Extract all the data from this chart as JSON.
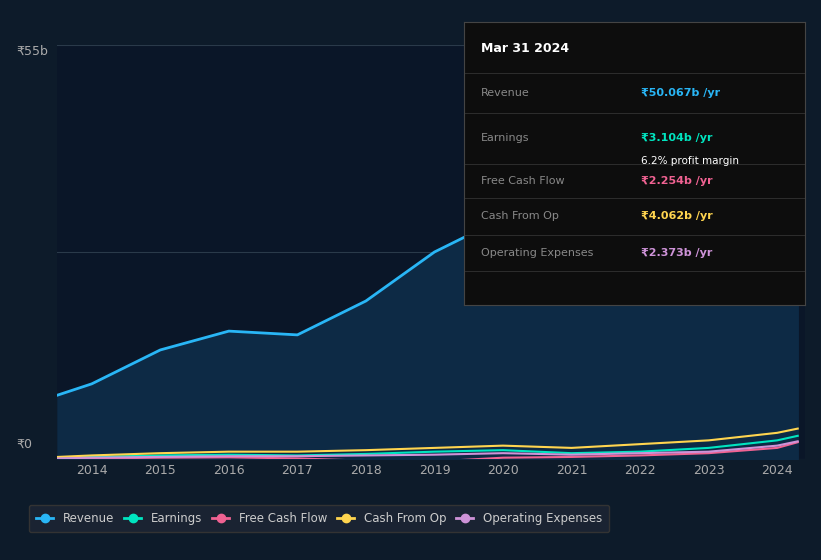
{
  "background_color": "#0d1b2a",
  "chart_area_color": "#0a1628",
  "y_label_55b": "₹55b",
  "y_label_0": "₹0",
  "years": [
    2013.5,
    2014,
    2015,
    2016,
    2017,
    2018,
    2019,
    2020,
    2021,
    2022,
    2023,
    2024,
    2024.3
  ],
  "revenue": [
    8.5,
    10.0,
    14.5,
    17.0,
    16.5,
    21.0,
    27.5,
    32.0,
    22.0,
    26.0,
    33.0,
    45.0,
    50.067
  ],
  "earnings": [
    0.2,
    0.3,
    0.5,
    0.6,
    0.5,
    0.7,
    1.0,
    1.2,
    0.8,
    1.0,
    1.5,
    2.5,
    3.104
  ],
  "free_cash_flow": [
    0.05,
    0.1,
    0.2,
    0.25,
    0.1,
    -0.2,
    -0.3,
    0.2,
    0.3,
    0.5,
    0.8,
    1.5,
    2.254
  ],
  "cash_from_op": [
    0.3,
    0.5,
    0.8,
    1.0,
    1.0,
    1.2,
    1.5,
    1.8,
    1.5,
    2.0,
    2.5,
    3.5,
    4.062
  ],
  "operating_expenses": [
    0.1,
    0.2,
    0.3,
    0.4,
    0.4,
    0.5,
    0.6,
    0.8,
    0.6,
    0.8,
    1.0,
    1.8,
    2.373
  ],
  "revenue_color": "#29b6f6",
  "earnings_color": "#00e5c0",
  "free_cash_flow_color": "#f06292",
  "cash_from_op_color": "#ffd54f",
  "operating_expenses_color": "#ce93d8",
  "revenue_fill_color": "#0d2a45",
  "ylim": [
    0,
    55
  ],
  "xlim_start": 2013.5,
  "xlim_end": 2024.4,
  "xticks": [
    2014,
    2015,
    2016,
    2017,
    2018,
    2019,
    2020,
    2021,
    2022,
    2023,
    2024
  ],
  "info_title": "Mar 31 2024",
  "info_revenue_label": "Revenue",
  "info_revenue_value": "₹50.067b /yr",
  "info_earnings_label": "Earnings",
  "info_earnings_value": "₹3.104b /yr",
  "info_margin_value": "6.2% profit margin",
  "info_fcf_label": "Free Cash Flow",
  "info_fcf_value": "₹2.254b /yr",
  "info_cfop_label": "Cash From Op",
  "info_cfop_value": "₹4.062b /yr",
  "info_opex_label": "Operating Expenses",
  "info_opex_value": "₹2.373b /yr",
  "legend_labels": [
    "Revenue",
    "Earnings",
    "Free Cash Flow",
    "Cash From Op",
    "Operating Expenses"
  ],
  "tooltip_dividers": [
    0.82,
    0.68,
    0.5,
    0.38,
    0.25,
    0.12
  ]
}
